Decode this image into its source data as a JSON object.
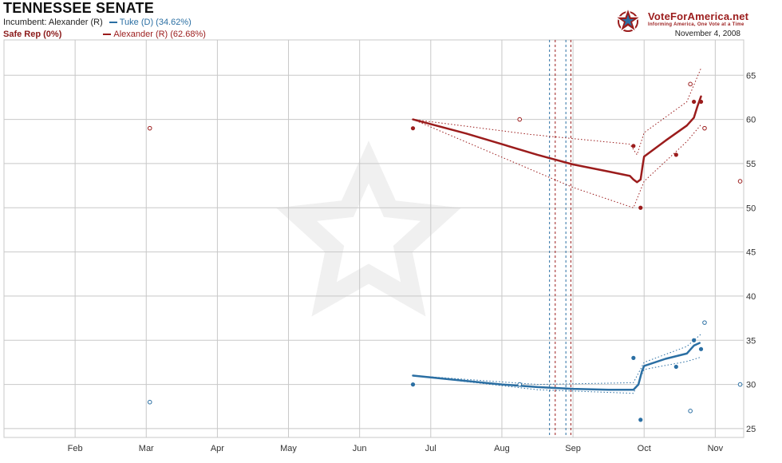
{
  "header": {
    "title": "TENNESSEE SENATE",
    "incumbent": "Incumbent: Alexander (R)",
    "status": "Safe Rep (0%)",
    "legend_dem": "Tuke (D) (34.62%)",
    "legend_rep": "Alexander (R) (62.68%)",
    "date": "November 4, 2008"
  },
  "logo": {
    "name": "VoteForAmerica.net",
    "tagline": "Informing America, One Vote at a Time"
  },
  "colors": {
    "dem": "#2b6fa3",
    "rep": "#9b1c1c",
    "grid": "#c8c8c8"
  },
  "chart_data": {
    "type": "line",
    "title": "TENNESSEE SENATE",
    "x_ticks": [
      "Feb",
      "Mar",
      "Apr",
      "May",
      "Jun",
      "Jul",
      "Aug",
      "Sep",
      "Oct",
      "Nov"
    ],
    "x_tick_pos": [
      1,
      2,
      3,
      4,
      5,
      6,
      7,
      8,
      9,
      10
    ],
    "xlim": [
      0,
      10.4
    ],
    "ylim": [
      24,
      69
    ],
    "y_ticks": [
      25,
      30,
      35,
      40,
      45,
      50,
      55,
      60,
      65
    ],
    "grid": true,
    "convention_lines": [
      {
        "series": "Tuke (D)",
        "x": 7.67
      },
      {
        "series": "Alexander (R)",
        "x": 7.75
      },
      {
        "series": "Tuke (D)",
        "x": 7.9
      },
      {
        "series": "Alexander (R)",
        "x": 7.97
      }
    ],
    "series": [
      {
        "name": "Alexander (R)",
        "final": "62.68%",
        "trend": [
          [
            5.75,
            60
          ],
          [
            6.5,
            58.4
          ],
          [
            7.0,
            57.2
          ],
          [
            7.5,
            56
          ],
          [
            8.0,
            54.9
          ],
          [
            8.5,
            54.1
          ],
          [
            8.8,
            53.6
          ],
          [
            8.85,
            53.2
          ],
          [
            8.9,
            52.9
          ],
          [
            8.95,
            53.2
          ],
          [
            8.98,
            54.8
          ],
          [
            9.0,
            55.8
          ],
          [
            9.3,
            57.6
          ],
          [
            9.6,
            59.3
          ],
          [
            9.7,
            60.2
          ],
          [
            9.75,
            61.5
          ],
          [
            9.8,
            62.6
          ]
        ],
        "upper": [
          [
            5.75,
            60
          ],
          [
            7.4,
            58.3
          ],
          [
            8.8,
            57.2
          ],
          [
            8.9,
            56
          ],
          [
            9.0,
            58.5
          ],
          [
            9.6,
            62
          ],
          [
            9.8,
            65.8
          ]
        ],
        "lower": [
          [
            5.75,
            60
          ],
          [
            8.0,
            52.3
          ],
          [
            8.85,
            50
          ],
          [
            9.0,
            53
          ],
          [
            9.6,
            57.5
          ],
          [
            9.8,
            59.4
          ]
        ],
        "polls_filled": [
          [
            5.75,
            59
          ],
          [
            8.85,
            57
          ],
          [
            8.95,
            50
          ],
          [
            9.45,
            56
          ],
          [
            9.7,
            62
          ],
          [
            9.8,
            62
          ]
        ],
        "polls_open": [
          [
            2.05,
            59
          ],
          [
            7.25,
            60
          ],
          [
            9.65,
            64
          ],
          [
            9.85,
            59
          ],
          [
            10.35,
            53
          ]
        ]
      },
      {
        "name": "Tuke (D)",
        "final": "34.62%",
        "trend": [
          [
            5.75,
            31
          ],
          [
            6.5,
            30.4
          ],
          [
            7.0,
            30
          ],
          [
            7.5,
            29.7
          ],
          [
            8.0,
            29.5
          ],
          [
            8.5,
            29.4
          ],
          [
            8.85,
            29.4
          ],
          [
            8.92,
            30
          ],
          [
            8.97,
            31.5
          ],
          [
            9.0,
            32.1
          ],
          [
            9.3,
            32.9
          ],
          [
            9.6,
            33.5
          ],
          [
            9.7,
            34.4
          ],
          [
            9.78,
            34.7
          ]
        ],
        "upper": [
          [
            5.75,
            31
          ],
          [
            7.5,
            30
          ],
          [
            8.85,
            30.2
          ],
          [
            9.0,
            32.5
          ],
          [
            9.6,
            34.3
          ],
          [
            9.8,
            35.7
          ]
        ],
        "lower": [
          [
            5.75,
            31
          ],
          [
            7.5,
            29.4
          ],
          [
            8.85,
            29
          ],
          [
            9.0,
            31.7
          ],
          [
            9.6,
            32.6
          ],
          [
            9.8,
            33.1
          ]
        ],
        "polls_filled": [
          [
            5.75,
            30
          ],
          [
            8.85,
            33
          ],
          [
            8.95,
            26
          ],
          [
            9.45,
            32
          ],
          [
            9.7,
            35
          ],
          [
            9.8,
            34
          ]
        ],
        "polls_open": [
          [
            2.05,
            28
          ],
          [
            7.25,
            30
          ],
          [
            9.65,
            27
          ],
          [
            9.85,
            37
          ],
          [
            10.35,
            30
          ]
        ]
      }
    ]
  }
}
